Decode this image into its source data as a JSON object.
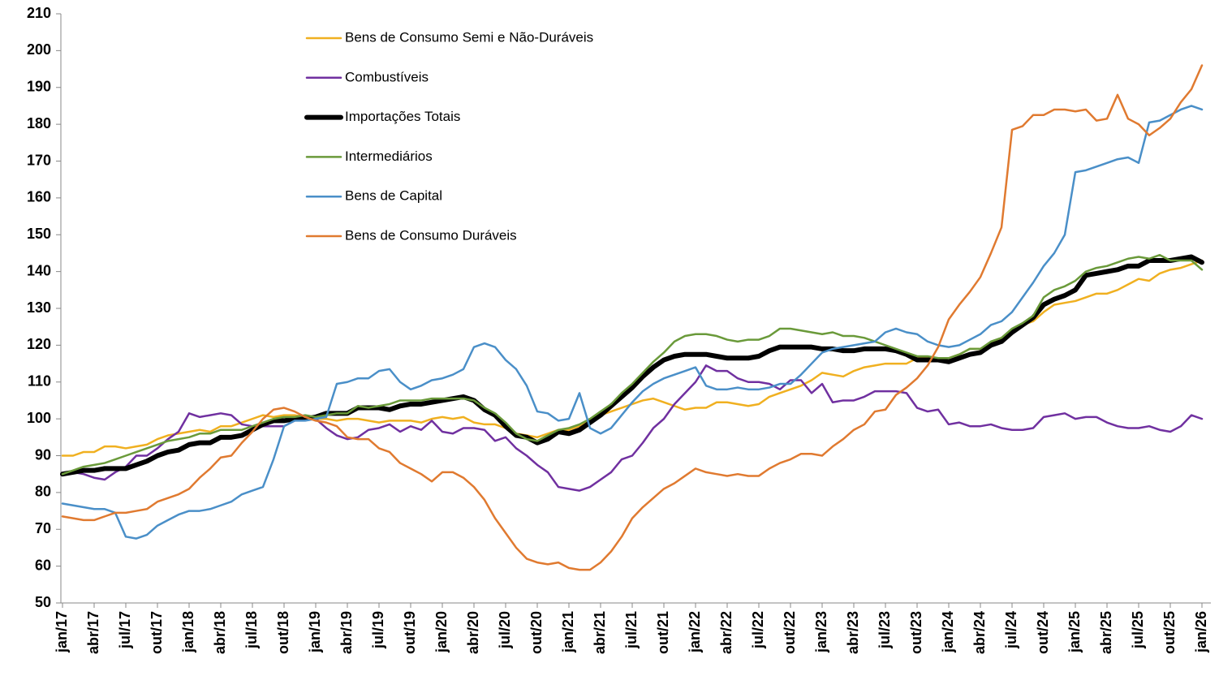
{
  "chart_data": {
    "type": "line",
    "categories": [
      "jan/17",
      null,
      null,
      "abr/17",
      null,
      null,
      "jul/17",
      null,
      null,
      "out/17",
      null,
      null,
      "jan/18",
      null,
      null,
      "abr/18",
      null,
      null,
      "jul/18",
      null,
      null,
      "out/18",
      null,
      null,
      "jan/19",
      null,
      null,
      "abr/19",
      null,
      null,
      "jul/19",
      null,
      null,
      "out/19",
      null,
      null,
      "jan/20",
      null,
      null,
      "abr/20",
      null,
      null,
      "jul/20",
      null,
      null,
      "out/20",
      null,
      null,
      "jan/21",
      null,
      null,
      "abr/21",
      null,
      null,
      "jul/21",
      null,
      null,
      "out/21",
      null,
      null,
      "jan/22",
      null,
      null,
      "abr/22",
      null,
      null,
      "jul/22",
      null,
      null,
      "out/22",
      null,
      null,
      "jan/23",
      null,
      null,
      "abr/23",
      null,
      null,
      "jul/23",
      null,
      null,
      "out/23",
      null,
      null,
      "jan/24",
      null,
      null,
      "abr/24",
      null,
      null,
      "jul/24",
      null,
      null,
      "out/24",
      null,
      null,
      "jan/25",
      null,
      null,
      "abr/25",
      null,
      null,
      "jul/25",
      null,
      null,
      "out/25",
      null,
      null,
      "jan/26"
    ],
    "series": [
      {
        "name": "Bens de Consumo Semi e Não-Duráveis",
        "color": "#f0b020",
        "line_width": 2.5,
        "values": [
          90,
          90,
          91,
          91,
          92.5,
          92.5,
          92,
          92.5,
          93,
          94.5,
          95.5,
          96,
          96.5,
          97,
          96.5,
          98,
          98,
          99,
          100,
          101,
          100.5,
          101,
          101,
          100.5,
          100,
          100,
          99.5,
          100,
          100,
          99.5,
          99,
          99.5,
          99.5,
          99.5,
          99,
          100,
          100.5,
          100,
          100.5,
          99,
          98.5,
          98.5,
          97.5,
          96,
          95.5,
          95,
          96,
          97,
          97,
          98,
          99.5,
          101,
          102,
          103,
          104,
          105,
          105.5,
          104.5,
          103.5,
          102.5,
          103,
          103,
          104.5,
          104.5,
          104,
          103.5,
          104,
          106,
          107,
          108,
          109,
          110.5,
          112.5,
          112,
          111.5,
          113,
          114,
          114.5,
          115,
          115,
          115,
          116.5,
          116.5,
          116.5,
          116.5,
          117.5,
          119,
          119,
          120.5,
          122,
          124,
          125.5,
          126.5,
          129,
          131,
          131.5,
          132,
          133,
          134,
          134,
          135,
          136.5,
          138,
          137.5,
          139.5,
          140.5,
          141,
          142,
          143
        ]
      },
      {
        "name": "Combustíveis",
        "color": "#7030a0",
        "line_width": 2.5,
        "values": [
          85,
          85.5,
          85,
          84,
          83.5,
          85.5,
          87,
          90,
          90,
          92,
          94.5,
          96.5,
          101.5,
          100.5,
          101,
          101.5,
          101,
          98.5,
          98,
          98,
          98,
          98,
          99.5,
          100.5,
          100,
          97.5,
          95.5,
          94.5,
          95,
          97,
          97.5,
          98.5,
          96.5,
          98,
          97,
          99.5,
          96.5,
          96,
          97.5,
          97.5,
          97,
          94,
          95,
          92,
          90,
          87.5,
          85.5,
          81.5,
          81,
          80.5,
          81.5,
          83.5,
          85.5,
          89,
          90,
          93.5,
          97.5,
          100,
          104,
          107,
          110,
          114.5,
          113,
          113,
          111,
          110,
          110,
          109.5,
          108,
          110.5,
          110.5,
          107,
          109.5,
          104.5,
          105,
          105,
          106,
          107.5,
          107.5,
          107.5,
          107,
          103,
          102,
          102.5,
          98.5,
          99,
          98,
          98,
          98.5,
          97.5,
          97,
          97,
          97.5,
          100.5,
          101,
          101.5,
          100,
          100.5,
          100.5,
          99,
          98,
          97.5,
          97.5,
          98,
          97,
          96.5,
          98,
          101,
          100
        ]
      },
      {
        "name": "Importações Totais",
        "color": "#000000",
        "line_width": 6,
        "values": [
          85,
          85.5,
          86,
          86,
          86.5,
          86.5,
          86.5,
          87.5,
          88.5,
          90,
          91,
          91.5,
          93,
          93.5,
          93.5,
          95,
          95,
          95.5,
          97,
          98.5,
          99.5,
          99.5,
          100,
          100,
          100.5,
          101.5,
          101.5,
          101.5,
          103,
          103,
          103,
          102.5,
          103.5,
          104,
          104,
          104.5,
          105,
          105.5,
          106,
          105,
          102.5,
          101,
          98,
          95.5,
          95,
          93.5,
          94.5,
          96.5,
          96,
          97,
          99,
          101,
          103.5,
          106,
          108.5,
          111.5,
          114,
          116,
          117,
          117.5,
          117.5,
          117.5,
          117,
          116.5,
          116.5,
          116.5,
          117,
          118.5,
          119.5,
          119.5,
          119.5,
          119.5,
          119,
          119,
          118.5,
          118.5,
          119,
          119,
          119,
          118.5,
          117.5,
          116,
          116,
          116,
          115.5,
          116.5,
          117.5,
          118,
          120,
          121,
          123.5,
          125.5,
          127.5,
          131,
          132.5,
          133.5,
          135,
          139,
          139.5,
          140,
          140.5,
          141.5,
          141.5,
          143,
          143,
          143,
          143.5,
          144,
          142.5
        ]
      },
      {
        "name": "Intermediários",
        "color": "#6a9a3a",
        "line_width": 2.5,
        "values": [
          85,
          86,
          87,
          87.5,
          88,
          89,
          90,
          91,
          92,
          93,
          94,
          94.5,
          95,
          96,
          96,
          97,
          97,
          97,
          98,
          99,
          100,
          100.5,
          100.5,
          101,
          100.5,
          101,
          101.5,
          101.5,
          103.5,
          103,
          103.5,
          104,
          105,
          105,
          105,
          105.5,
          105.5,
          105.5,
          105.5,
          105,
          103,
          101.5,
          99,
          96,
          94.5,
          94,
          95.5,
          97,
          97.5,
          98.5,
          100,
          102,
          104,
          107,
          109.5,
          112.5,
          115.5,
          118,
          121,
          122.5,
          123,
          123,
          122.5,
          121.5,
          121,
          121.5,
          121.5,
          122.5,
          124.5,
          124.5,
          124,
          123.5,
          123,
          123.5,
          122.5,
          122.5,
          122,
          121,
          120,
          119,
          118,
          117,
          117,
          116.5,
          116.5,
          117.5,
          119,
          119,
          121,
          122,
          124.5,
          126,
          128,
          133,
          135,
          136,
          137.5,
          140,
          141,
          141.5,
          142.5,
          143.5,
          144,
          143.5,
          144.5,
          143,
          143,
          143,
          140.5
        ]
      },
      {
        "name": "Bens de Capital",
        "color": "#4a8fc8",
        "line_width": 2.5,
        "values": [
          77,
          76.5,
          76,
          75.5,
          75.5,
          74.5,
          68,
          67.5,
          68.5,
          71,
          72.5,
          74,
          75,
          75,
          75.5,
          76.5,
          77.5,
          79.5,
          80.5,
          81.5,
          89,
          98,
          99.5,
          99.5,
          100,
          100.5,
          109.5,
          110,
          111,
          111,
          113,
          113.5,
          110,
          108,
          109,
          110.5,
          111,
          112,
          113.5,
          119.5,
          120.5,
          119.5,
          116,
          113.5,
          109,
          102,
          101.5,
          99.5,
          100,
          107,
          97.5,
          96,
          97.5,
          101,
          104.5,
          107.5,
          109.5,
          111,
          112,
          113,
          114,
          109,
          108,
          108,
          108.5,
          108,
          108,
          108.5,
          109.5,
          109.5,
          112,
          115,
          118,
          119,
          119.5,
          120,
          120.5,
          121,
          123.5,
          124.5,
          123.5,
          123,
          121,
          120,
          119.5,
          120,
          121.5,
          123,
          125.5,
          126.5,
          129,
          133,
          137,
          141.5,
          145,
          150,
          167,
          167.5,
          168.5,
          169.5,
          170.5,
          171,
          169.5,
          180.5,
          181,
          182.5,
          184,
          185,
          184
        ]
      },
      {
        "name": "Bens de Consumo Duráveis",
        "color": "#e07a30",
        "line_width": 2.5,
        "values": [
          73.5,
          73,
          72.5,
          72.5,
          73.5,
          74.5,
          74.5,
          75,
          75.5,
          77.5,
          78.5,
          79.5,
          81,
          84,
          86.5,
          89.5,
          90,
          93.5,
          96.5,
          100,
          102.5,
          103,
          102,
          100.5,
          99.5,
          99,
          98,
          95,
          94.5,
          94.5,
          92,
          91,
          88,
          86.5,
          85,
          83,
          85.5,
          85.5,
          84,
          81.5,
          78,
          73,
          69,
          65,
          62,
          61,
          60.5,
          61,
          59.5,
          59,
          59,
          61,
          64,
          68,
          73,
          76,
          78.5,
          81,
          82.5,
          84.5,
          86.5,
          85.5,
          85,
          84.5,
          85,
          84.5,
          84.5,
          86.5,
          88,
          89,
          90.5,
          90.5,
          90,
          92.5,
          94.5,
          97,
          98.5,
          102,
          102.5,
          106.5,
          108.5,
          111,
          114.5,
          119.5,
          127,
          131,
          134.5,
          138.5,
          145,
          152,
          178.5,
          179.5,
          182.5,
          182.5,
          184,
          184,
          183.5,
          184,
          181,
          181.5,
          188,
          181.5,
          180,
          177,
          179,
          181.5,
          186,
          189.5,
          196
        ]
      }
    ],
    "ylim": [
      50,
      210
    ],
    "yticks": [
      50,
      60,
      70,
      80,
      90,
      100,
      110,
      120,
      130,
      140,
      150,
      160,
      170,
      180,
      190,
      200,
      210
    ]
  }
}
